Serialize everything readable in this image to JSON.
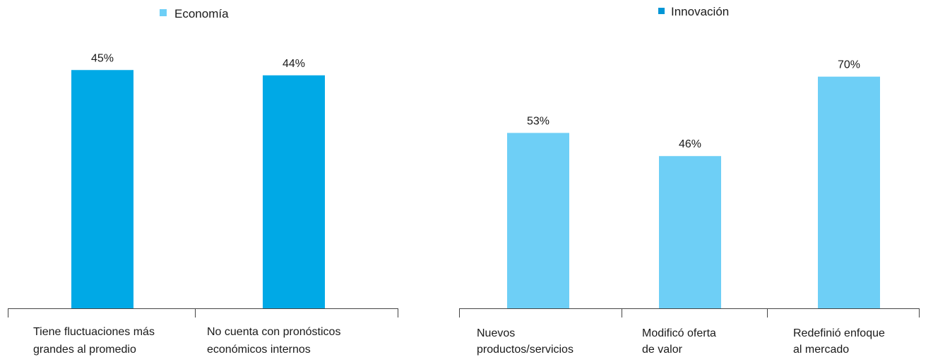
{
  "chart_data": [
    {
      "type": "bar",
      "legend": {
        "label": "Economía",
        "marker_color": "#6ECFF6"
      },
      "categories": [
        "Tiene fluctuaciones más grandes al promedio",
        "No cuenta con pronósticos económicos internos"
      ],
      "category_lines": [
        [
          "Tiene fluctuaciones más",
          "grandes al promedio"
        ],
        [
          "No cuenta con pronósticos",
          "económicos internos"
        ]
      ],
      "values": [
        45,
        44
      ],
      "value_labels": [
        "45%",
        "44%"
      ],
      "bar_color": "#00A9E6",
      "ylim": [
        0,
        46.5
      ]
    },
    {
      "type": "bar",
      "legend": {
        "label": "Innovación",
        "marker_color": "#0096D6"
      },
      "categories": [
        "Nuevos productos/servicios",
        "Modificó oferta de valor",
        "Redefinió enfoque al mercado"
      ],
      "category_lines": [
        [
          "Nuevos",
          "productos/servicios"
        ],
        [
          "Modificó oferta",
          "de valor"
        ],
        [
          "Redefinió enfoque",
          "al mercado"
        ]
      ],
      "values": [
        53,
        46,
        70
      ],
      "value_labels": [
        "53%",
        "46%",
        "70%"
      ],
      "bar_color": "#6ECFF6",
      "ylim": [
        0,
        74.4
      ]
    }
  ]
}
